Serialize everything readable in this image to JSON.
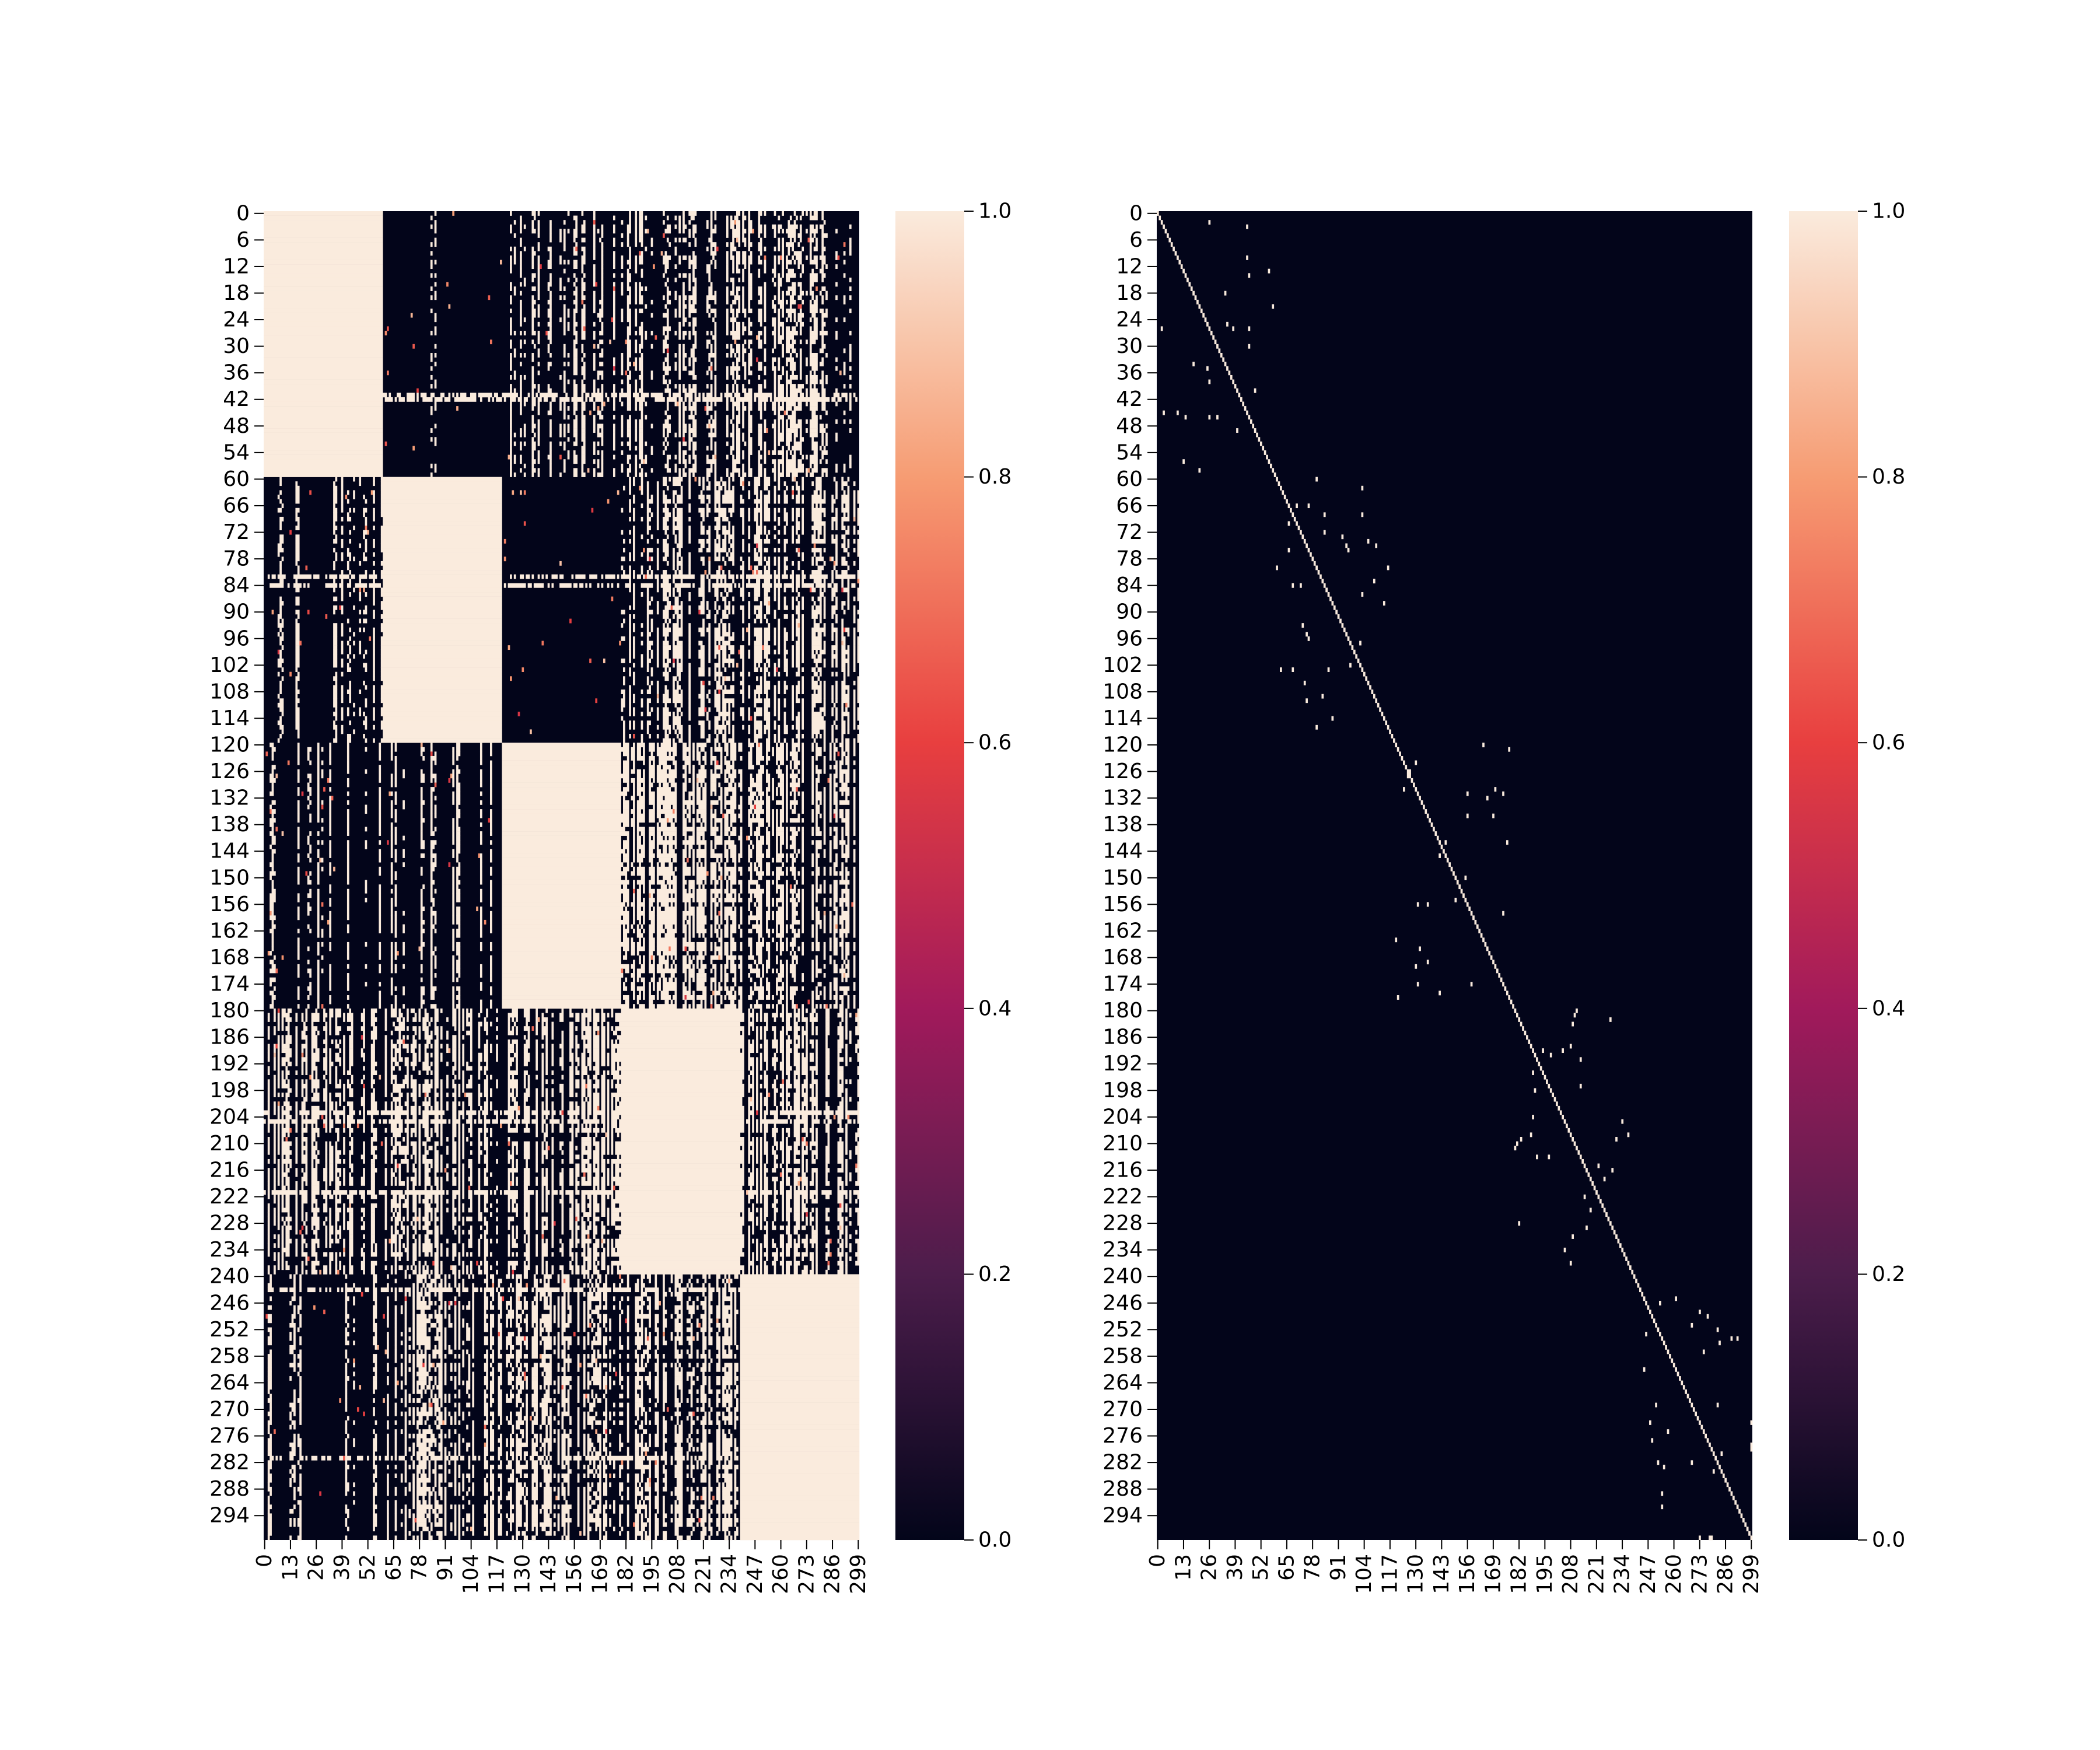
{
  "figure": {
    "background": "#ffffff"
  },
  "colormap": {
    "name": "rocket",
    "stops": [
      "#03051a",
      "#4c1d4b",
      "#a11a5b",
      "#e83f3f",
      "#f69c73",
      "#faebdd"
    ]
  },
  "chart_data": [
    {
      "type": "heatmap",
      "title": "",
      "xlabel": "",
      "ylabel": "",
      "n": 300,
      "vmin": 0.0,
      "vmax": 1.0,
      "x_ticks": [
        0,
        13,
        26,
        39,
        52,
        65,
        78,
        91,
        104,
        117,
        130,
        143,
        156,
        169,
        182,
        195,
        208,
        221,
        234,
        247,
        260,
        273,
        286,
        299
      ],
      "y_ticks": [
        0,
        6,
        12,
        18,
        24,
        30,
        36,
        42,
        48,
        54,
        60,
        66,
        72,
        78,
        84,
        90,
        96,
        102,
        108,
        114,
        120,
        126,
        132,
        138,
        144,
        150,
        156,
        162,
        168,
        174,
        180,
        186,
        192,
        198,
        204,
        210,
        216,
        222,
        228,
        234,
        240,
        246,
        252,
        258,
        264,
        270,
        276,
        282,
        288,
        294
      ],
      "colorbar_ticks": [
        "0.0",
        "0.2",
        "0.4",
        "0.6",
        "0.8",
        "1.0"
      ],
      "structure": "block-diagonal clusters of value 1.0 (rows/cols 0-59, 60-119, 120-179, 180-239, 240-299) with scattered off-diagonal patches of 1.0 and rare mid values",
      "full_blocks": [
        [
          0,
          59
        ],
        [
          60,
          119
        ],
        [
          120,
          179
        ],
        [
          180,
          239
        ],
        [
          240,
          299
        ]
      ],
      "partial_blocks": [
        [
          [
            0,
            59
          ],
          [
            120,
            179
          ],
          0.2
        ],
        [
          [
            0,
            59
          ],
          [
            180,
            239
          ],
          0.22
        ],
        [
          [
            0,
            59
          ],
          [
            240,
            299
          ],
          0.2
        ],
        [
          [
            60,
            119
          ],
          [
            0,
            59
          ],
          0.1
        ],
        [
          [
            60,
            119
          ],
          [
            180,
            239
          ],
          0.25
        ],
        [
          [
            60,
            119
          ],
          [
            240,
            299
          ],
          0.3
        ],
        [
          [
            120,
            179
          ],
          [
            0,
            59
          ],
          0.08
        ],
        [
          [
            120,
            179
          ],
          [
            60,
            119
          ],
          0.1
        ],
        [
          [
            120,
            179
          ],
          [
            180,
            239
          ],
          0.45
        ],
        [
          [
            120,
            179
          ],
          [
            240,
            299
          ],
          0.3
        ],
        [
          [
            180,
            239
          ],
          [
            0,
            59
          ],
          0.25
        ],
        [
          [
            180,
            239
          ],
          [
            60,
            119
          ],
          0.3
        ],
        [
          [
            180,
            239
          ],
          [
            120,
            179
          ],
          0.35
        ],
        [
          [
            180,
            239
          ],
          [
            240,
            299
          ],
          0.35
        ],
        [
          [
            240,
            299
          ],
          [
            0,
            59
          ],
          0.12
        ],
        [
          [
            240,
            299
          ],
          [
            60,
            119
          ],
          0.25
        ],
        [
          [
            240,
            299
          ],
          [
            120,
            179
          ],
          0.35
        ],
        [
          [
            240,
            299
          ],
          [
            180,
            239
          ],
          0.3
        ]
      ],
      "bright_rows": [
        41,
        42,
        82,
        84,
        203,
        205,
        221,
        243,
        281
      ],
      "bright_cols": [
        84,
        86,
        190,
        202,
        207,
        244
      ]
    },
    {
      "type": "heatmap",
      "title": "",
      "xlabel": "",
      "ylabel": "",
      "n": 300,
      "vmin": 0.0,
      "vmax": 1.0,
      "x_ticks": [
        0,
        13,
        26,
        39,
        52,
        65,
        78,
        91,
        104,
        117,
        130,
        143,
        156,
        169,
        182,
        195,
        208,
        221,
        234,
        247,
        260,
        273,
        286,
        299
      ],
      "y_ticks": [
        0,
        6,
        12,
        18,
        24,
        30,
        36,
        42,
        48,
        54,
        60,
        66,
        72,
        78,
        84,
        90,
        96,
        102,
        108,
        114,
        120,
        126,
        132,
        138,
        144,
        150,
        156,
        162,
        168,
        174,
        180,
        186,
        192,
        198,
        204,
        210,
        216,
        222,
        228,
        234,
        240,
        246,
        252,
        258,
        264,
        270,
        276,
        282,
        288,
        294
      ],
      "colorbar_ticks": [
        "0.0",
        "0.2",
        "0.4",
        "0.6",
        "0.8",
        "1.0"
      ],
      "structure": "near-identity matrix: value 1.0 on the diagonal, sparse isolated 1.0 entries near the diagonal within each 60-block, 0.0 elsewhere",
      "diagonal_value": 1.0,
      "sparse_within_blocks": [
        [
          0,
          59
        ],
        [
          60,
          119
        ],
        [
          120,
          179
        ],
        [
          180,
          239
        ],
        [
          240,
          299
        ]
      ],
      "sparse_density": 0.004
    }
  ]
}
